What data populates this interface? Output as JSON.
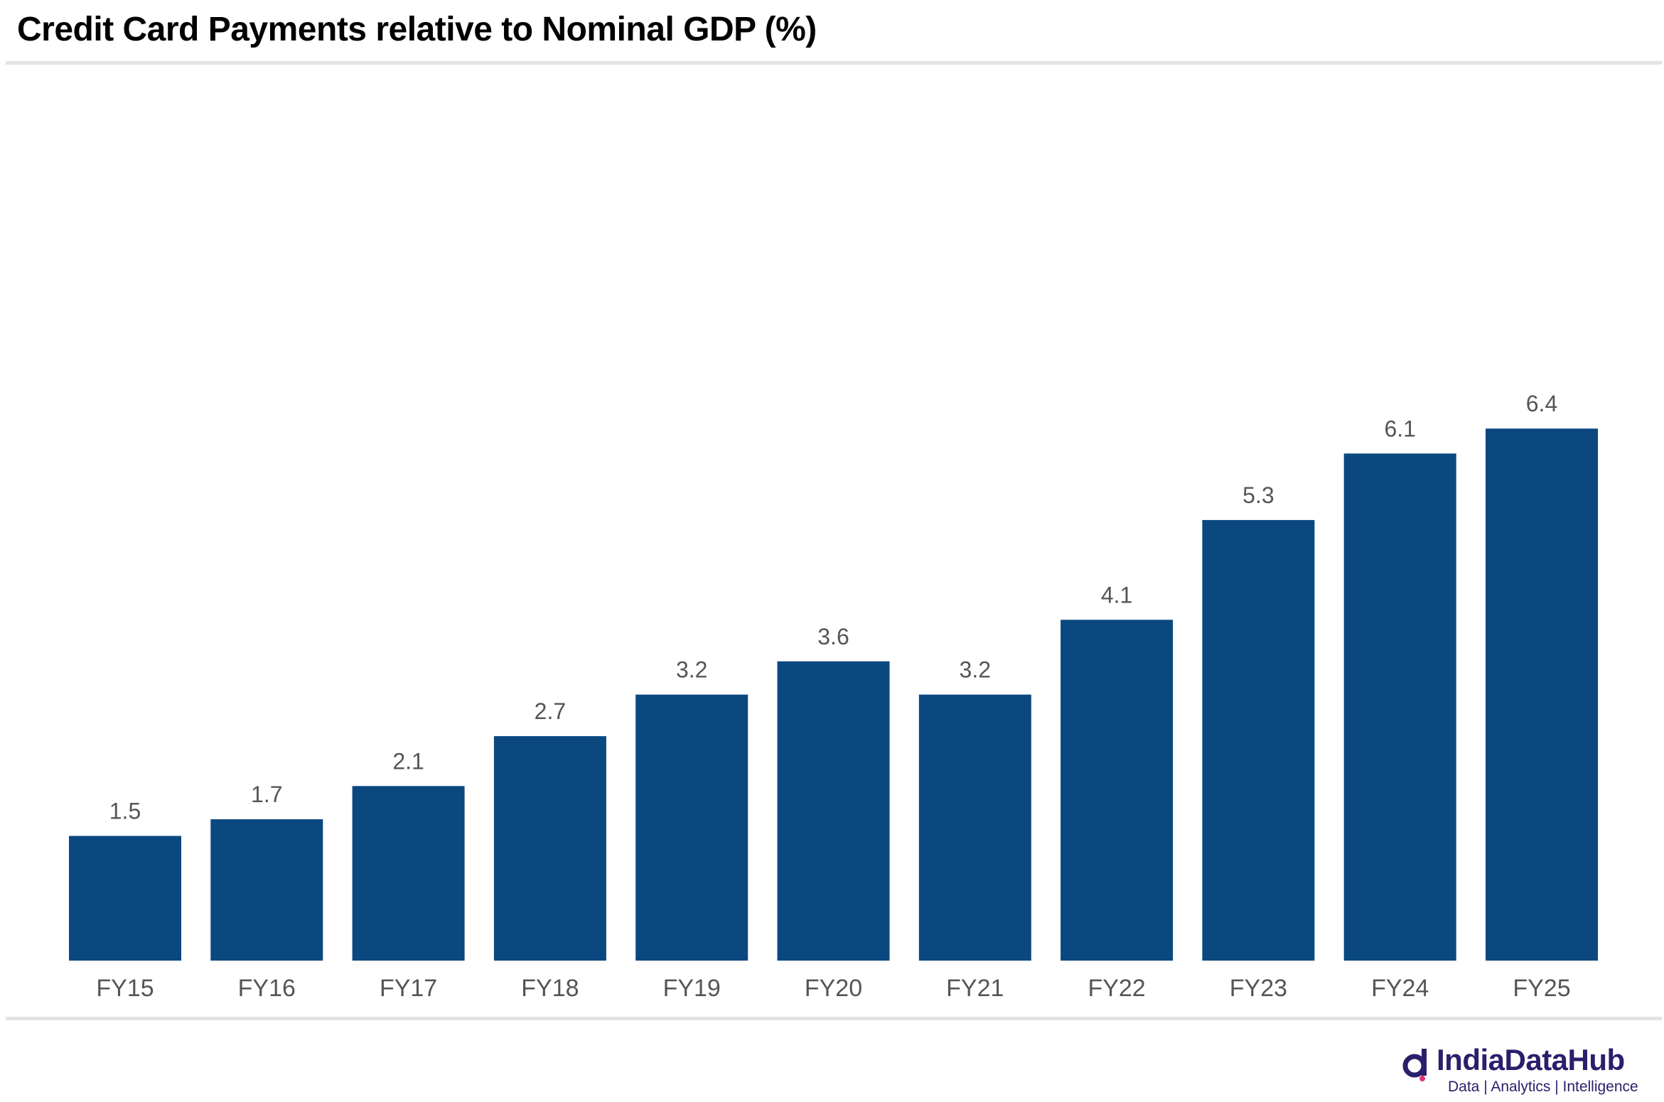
{
  "title": "Credit Card Payments relative to Nominal GDP (%)",
  "brand": {
    "name": "IndiaDataHub",
    "tagline": "Data | Analytics | Intelligence"
  },
  "colors": {
    "bar": "#0b4880",
    "label": "#555555",
    "rule": "#e3e3e3",
    "brand": "#2a1f6b"
  },
  "chart_data": {
    "type": "bar",
    "title": "Credit Card Payments relative to Nominal GDP (%)",
    "xlabel": "",
    "ylabel": "",
    "categories": [
      "FY15",
      "FY16",
      "FY17",
      "FY18",
      "FY19",
      "FY20",
      "FY21",
      "FY22",
      "FY23",
      "FY24",
      "FY25"
    ],
    "values": [
      1.5,
      1.7,
      2.1,
      2.7,
      3.2,
      3.6,
      3.2,
      4.1,
      5.3,
      6.1,
      6.4
    ],
    "value_labels": [
      "1.5",
      "1.7",
      "2.1",
      "2.7",
      "3.2",
      "3.6",
      "3.2",
      "4.1",
      "5.3",
      "6.1",
      "6.4"
    ],
    "ylim": [
      0,
      7
    ],
    "grid": false,
    "legend": "none"
  }
}
